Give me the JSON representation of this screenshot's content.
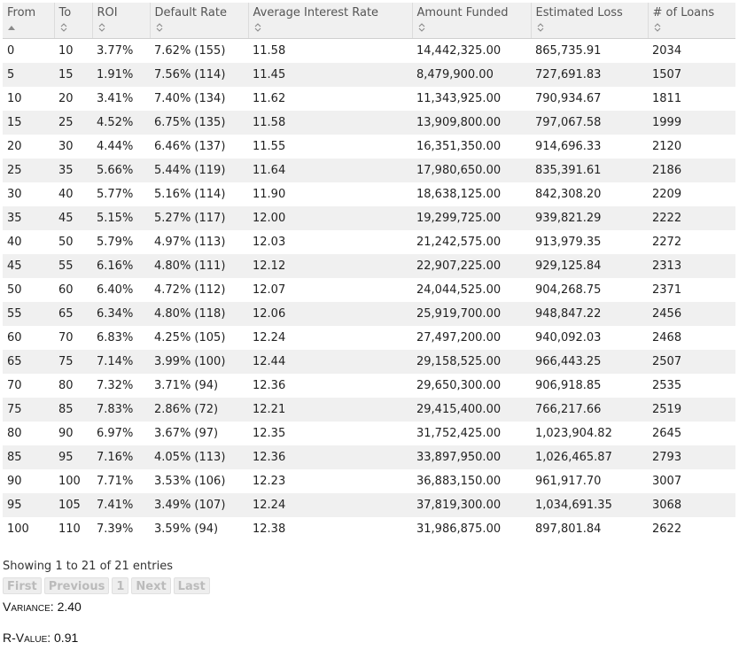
{
  "table": {
    "columns": [
      "From",
      "To",
      "ROI",
      "Default Rate",
      "Average Interest Rate",
      "Amount Funded",
      "Estimated Loss",
      "# of Loans"
    ],
    "rows": [
      [
        "0",
        "10",
        "3.77%",
        "7.62% (155)",
        "11.58",
        "14,442,325.00",
        "865,735.91",
        "2034"
      ],
      [
        "5",
        "15",
        "1.91%",
        "7.56% (114)",
        "11.45",
        "8,479,900.00",
        "727,691.83",
        "1507"
      ],
      [
        "10",
        "20",
        "3.41%",
        "7.40% (134)",
        "11.62",
        "11,343,925.00",
        "790,934.67",
        "1811"
      ],
      [
        "15",
        "25",
        "4.52%",
        "6.75% (135)",
        "11.58",
        "13,909,800.00",
        "797,067.58",
        "1999"
      ],
      [
        "20",
        "30",
        "4.44%",
        "6.46% (137)",
        "11.55",
        "16,351,350.00",
        "914,696.33",
        "2120"
      ],
      [
        "25",
        "35",
        "5.66%",
        "5.44% (119)",
        "11.64",
        "17,980,650.00",
        "835,391.61",
        "2186"
      ],
      [
        "30",
        "40",
        "5.77%",
        "5.16% (114)",
        "11.90",
        "18,638,125.00",
        "842,308.20",
        "2209"
      ],
      [
        "35",
        "45",
        "5.15%",
        "5.27% (117)",
        "12.00",
        "19,299,725.00",
        "939,821.29",
        "2222"
      ],
      [
        "40",
        "50",
        "5.79%",
        "4.97% (113)",
        "12.03",
        "21,242,575.00",
        "913,979.35",
        "2272"
      ],
      [
        "45",
        "55",
        "6.16%",
        "4.80% (111)",
        "12.12",
        "22,907,225.00",
        "929,125.84",
        "2313"
      ],
      [
        "50",
        "60",
        "6.40%",
        "4.72% (112)",
        "12.07",
        "24,044,525.00",
        "904,268.75",
        "2371"
      ],
      [
        "55",
        "65",
        "6.34%",
        "4.80% (118)",
        "12.06",
        "25,919,700.00",
        "948,847.22",
        "2456"
      ],
      [
        "60",
        "70",
        "6.83%",
        "4.25% (105)",
        "12.24",
        "27,497,200.00",
        "940,092.03",
        "2468"
      ],
      [
        "65",
        "75",
        "7.14%",
        "3.99% (100)",
        "12.44",
        "29,158,525.00",
        "966,443.25",
        "2507"
      ],
      [
        "70",
        "80",
        "7.32%",
        "3.71% (94)",
        "12.36",
        "29,650,300.00",
        "906,918.85",
        "2535"
      ],
      [
        "75",
        "85",
        "7.83%",
        "2.86% (72)",
        "12.21",
        "29,415,400.00",
        "766,217.66",
        "2519"
      ],
      [
        "80",
        "90",
        "6.97%",
        "3.67% (97)",
        "12.35",
        "31,752,425.00",
        "1,023,904.82",
        "2645"
      ],
      [
        "85",
        "95",
        "7.16%",
        "4.05% (113)",
        "12.36",
        "33,897,950.00",
        "1,026,465.87",
        "2793"
      ],
      [
        "90",
        "100",
        "7.71%",
        "3.53% (106)",
        "12.23",
        "36,883,150.00",
        "961,917.70",
        "3007"
      ],
      [
        "95",
        "105",
        "7.41%",
        "3.49% (107)",
        "12.24",
        "37,819,300.00",
        "1,034,691.35",
        "3068"
      ],
      [
        "100",
        "110",
        "7.39%",
        "3.59% (94)",
        "12.38",
        "31,986,875.00",
        "897,801.84",
        "2622"
      ]
    ]
  },
  "info": "Showing 1 to 21 of 21 entries",
  "pager": {
    "first": "First",
    "previous": "Previous",
    "page": "1",
    "next": "Next",
    "last": "Last"
  },
  "stats": {
    "variance_label": "Variance",
    "variance_value": ": 2.40",
    "rvalue_label": "R-Value",
    "rvalue_value": ": 0.91"
  },
  "icons": {
    "sorted_asc": "sort-ascending-icon",
    "sortable": "sort-both-icon"
  },
  "colors": {
    "header_bg": "#f0f0f0",
    "stripe_bg": "#f0f0f0",
    "disabled_text": "#bbbbbb"
  }
}
